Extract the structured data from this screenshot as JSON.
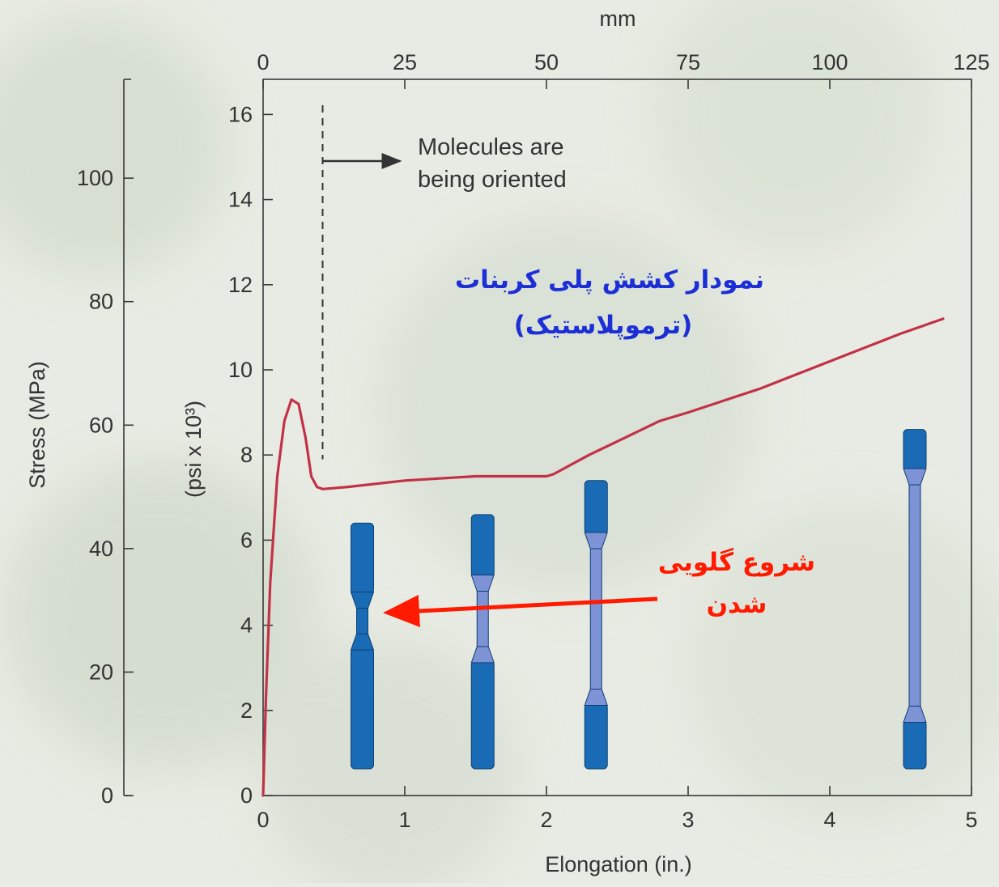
{
  "chart_data": {
    "type": "line",
    "x_axis": {
      "label": "Elongation (in.)",
      "range": [
        0,
        5
      ],
      "ticks": [
        "0",
        "1",
        "2",
        "3",
        "4",
        "5"
      ]
    },
    "x_top_axis": {
      "label": "mm",
      "range": [
        0,
        125
      ],
      "ticks": [
        "0",
        "25",
        "50",
        "75",
        "100",
        "125"
      ]
    },
    "y_axis_psi": {
      "label": "(psi x 10³)",
      "range": [
        0,
        16
      ],
      "ticks": [
        "0",
        "2",
        "4",
        "6",
        "8",
        "10",
        "12",
        "14",
        "16"
      ]
    },
    "y_axis_mpa": {
      "label": "Stress (MPa)",
      "range": [
        0,
        110
      ],
      "ticks": [
        "0",
        "20",
        "40",
        "60",
        "80",
        "100"
      ]
    },
    "series": [
      {
        "color": "#c23246",
        "x": [
          0,
          0.02,
          0.05,
          0.1,
          0.15,
          0.2,
          0.25,
          0.3,
          0.34,
          0.38,
          0.42,
          0.6,
          1.0,
          1.5,
          2.0,
          2.05,
          2.3,
          2.55,
          2.8,
          3.0,
          3.5,
          4.0,
          4.5,
          4.8
        ],
        "y": [
          0,
          2.3,
          5.0,
          7.5,
          8.8,
          9.3,
          9.2,
          8.4,
          7.5,
          7.25,
          7.2,
          7.25,
          7.4,
          7.5,
          7.5,
          7.55,
          8.0,
          8.4,
          8.8,
          9.0,
          9.55,
          10.2,
          10.85,
          11.2
        ]
      }
    ],
    "annotations": {
      "orientation_line_x": 0.42,
      "orientation_text_line1": "Molecules are",
      "orientation_text_line2": "being oriented",
      "title_fa_line1": "نمودار کشش پلی کربنات",
      "title_fa_line2": "(ترموپلاستیک)",
      "necking_fa_line1": "شروع گلویی",
      "necking_fa_line2": "شدن"
    },
    "specimens": [
      {
        "x": 0.7,
        "neck_top": 3.8,
        "neck_bottom": 4.4
      },
      {
        "x": 1.55,
        "neck_top": 3.5,
        "neck_bottom": 4.8
      },
      {
        "x": 2.35,
        "neck_top": 2.5,
        "neck_bottom": 5.8
      },
      {
        "x": 4.6,
        "neck_top": 2.1,
        "neck_bottom": 7.3
      }
    ],
    "colors": {
      "curve": "#c23246",
      "specimen": "#1a6bb5",
      "specimen_neck": "#7e92d6",
      "arrow": "#ff1a00"
    }
  }
}
